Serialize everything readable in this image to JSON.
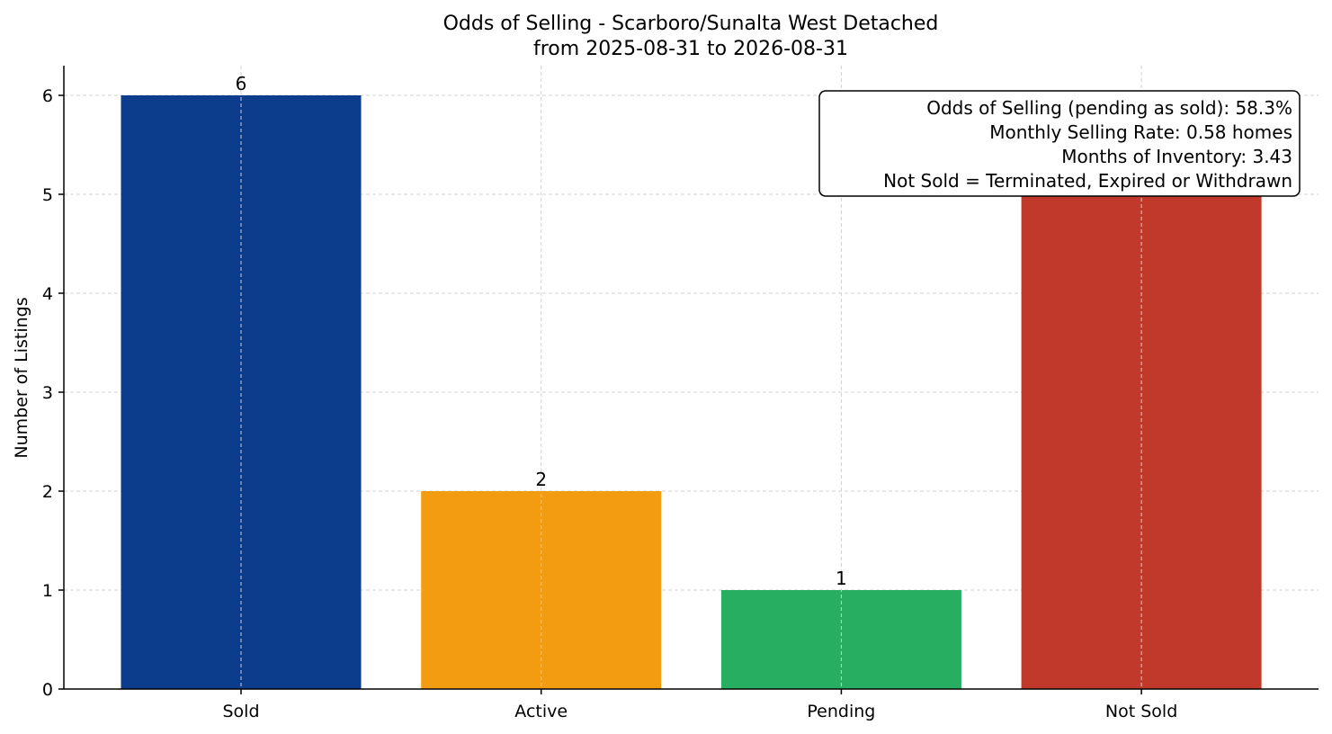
{
  "chart_data": {
    "type": "bar",
    "title": "Odds of Selling - Scarboro/Sunalta West Detached",
    "subtitle": "from 2025-08-31 to 2026-08-31",
    "xlabel": "",
    "ylabel": "Number of Listings",
    "categories": [
      "Sold",
      "Active",
      "Pending",
      "Not Sold"
    ],
    "values": [
      6,
      2,
      1,
      5
    ],
    "data_labels": [
      "6",
      "2",
      "1",
      "5"
    ],
    "colors": [
      "#0b3d8c",
      "#f39c12",
      "#27ae60",
      "#c0392b"
    ],
    "ylim": [
      0,
      6.3
    ],
    "yticks": [
      0,
      1,
      2,
      3,
      4,
      5,
      6
    ],
    "grid": true,
    "annotation": {
      "placement": "top-right",
      "lines": [
        "Odds of Selling (pending as sold): 58.3%",
        "Monthly Selling Rate: 0.58 homes",
        "Months of Inventory: 3.43",
        "Not Sold = Terminated, Expired or Withdrawn"
      ]
    }
  }
}
